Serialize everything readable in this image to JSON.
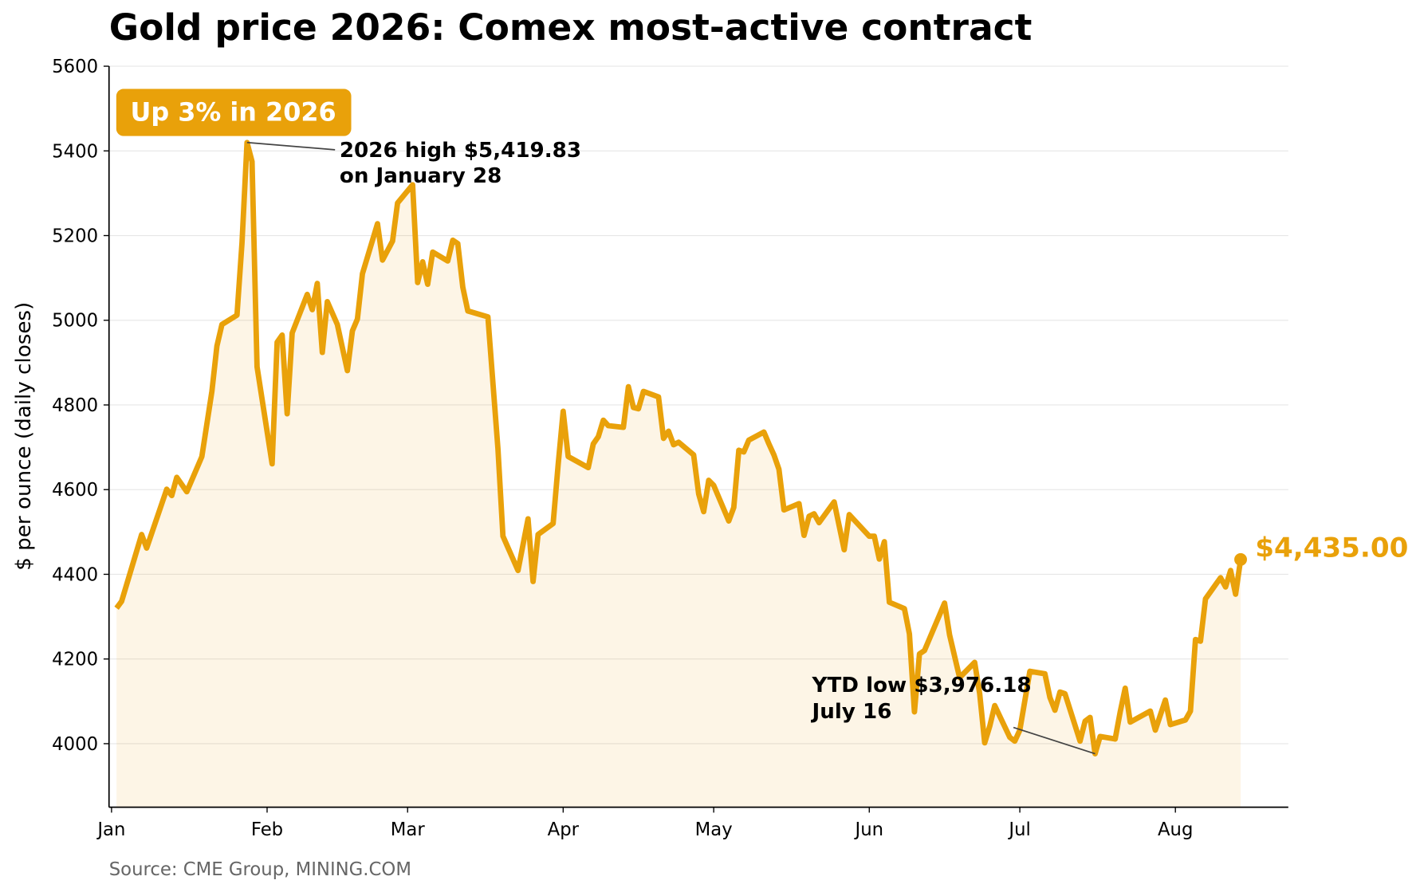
{
  "chart_data": {
    "type": "line",
    "title": "Gold price 2026: Comex most-active contract",
    "y_label": "$ per ounce (daily closes)",
    "source": "Source: CME Group, MINING.COM",
    "badge": "Up 3% in 2026",
    "annotations": [
      {
        "lines": [
          "2026 high $5,419.83",
          "on January 28"
        ]
      },
      {
        "lines": [
          "YTD low $3,976.18",
          "July 16"
        ]
      }
    ],
    "end_label": "$4,435.00",
    "color": "#e9a10a",
    "grid": true,
    "xlim": [
      0.5,
      235.5
    ],
    "ylim": [
      3850,
      5600
    ],
    "xticks": [
      {
        "value": 1,
        "label": "Jan"
      },
      {
        "value": 32,
        "label": "Feb"
      },
      {
        "value": 60,
        "label": "Mar"
      },
      {
        "value": 91,
        "label": "Apr"
      },
      {
        "value": 121,
        "label": "May"
      },
      {
        "value": 152,
        "label": "Jun"
      },
      {
        "value": 182,
        "label": "Jul"
      },
      {
        "value": 213,
        "label": "Aug"
      }
    ],
    "yticks": [
      4000,
      4200,
      4400,
      4600,
      4800,
      5000,
      5200,
      5400,
      5600
    ],
    "x": [
      2,
      3,
      7,
      8,
      12,
      13,
      14,
      16,
      19,
      21,
      22,
      23,
      26,
      27,
      28,
      29,
      30,
      33,
      34,
      35,
      36,
      37,
      40,
      41,
      42,
      43,
      44,
      46,
      48,
      49,
      50,
      51,
      54,
      55,
      57,
      58,
      61,
      62,
      63,
      64,
      65,
      68,
      69,
      70,
      71,
      72,
      76,
      78,
      79,
      82,
      84,
      85,
      86,
      89,
      90,
      91,
      92,
      96,
      97,
      98,
      99,
      100,
      103,
      104,
      105,
      106,
      107,
      110,
      111,
      112,
      113,
      114,
      117,
      118,
      119,
      120,
      121,
      124,
      125,
      126,
      127,
      128,
      131,
      132,
      133,
      134,
      135,
      138,
      139,
      140,
      141,
      142,
      145,
      147,
      148,
      152,
      153,
      154,
      155,
      156,
      159,
      160,
      161,
      162,
      163,
      167,
      168,
      170,
      173,
      174,
      175,
      176,
      177,
      180,
      181,
      182,
      184,
      187,
      188,
      189,
      190,
      191,
      194,
      195,
      196,
      197,
      198,
      201,
      202,
      203,
      204,
      208,
      209,
      211,
      212,
      215,
      216,
      217,
      218,
      219,
      222,
      223,
      224,
      225,
      226
    ],
    "values": [
      4320,
      4336,
      4494,
      4462,
      4601,
      4586,
      4629,
      4595,
      4678,
      4832,
      4939,
      4990,
      5012,
      5183,
      5419.83,
      5375,
      4890,
      4661,
      4948,
      4965,
      4779,
      4970,
      5061,
      5025,
      5087,
      4924,
      5044,
      4990,
      4881,
      4975,
      5003,
      5110,
      5228,
      5142,
      5187,
      5277,
      5320,
      5089,
      5138,
      5085,
      5161,
      5140,
      5189,
      5181,
      5078,
      5022,
      5008,
      4697,
      4490,
      4409,
      4531,
      4383,
      4494,
      4520,
      4659,
      4785,
      4678,
      4652,
      4708,
      4725,
      4764,
      4751,
      4747,
      4843,
      4794,
      4791,
      4832,
      4819,
      4721,
      4738,
      4706,
      4712,
      4682,
      4590,
      4548,
      4622,
      4610,
      4526,
      4558,
      4693,
      4689,
      4717,
      4736,
      4708,
      4682,
      4648,
      4552,
      4567,
      4492,
      4537,
      4543,
      4522,
      4571,
      4458,
      4541,
      4490,
      4490,
      4436,
      4477,
      4334,
      4319,
      4259,
      4075,
      4212,
      4220,
      4332,
      4257,
      4156,
      4192,
      4118,
      4002,
      4041,
      4090,
      4015,
      4006,
      4032,
      4171,
      4165,
      4109,
      4079,
      4122,
      4118,
      4006,
      4053,
      4062,
      3976.18,
      4017,
      4011,
      4075,
      4131,
      4051,
      4077,
      4032,
      4103,
      4045,
      4056,
      4077,
      4246,
      4242,
      4342,
      4392,
      4370,
      4409,
      4353,
      4435
    ]
  }
}
